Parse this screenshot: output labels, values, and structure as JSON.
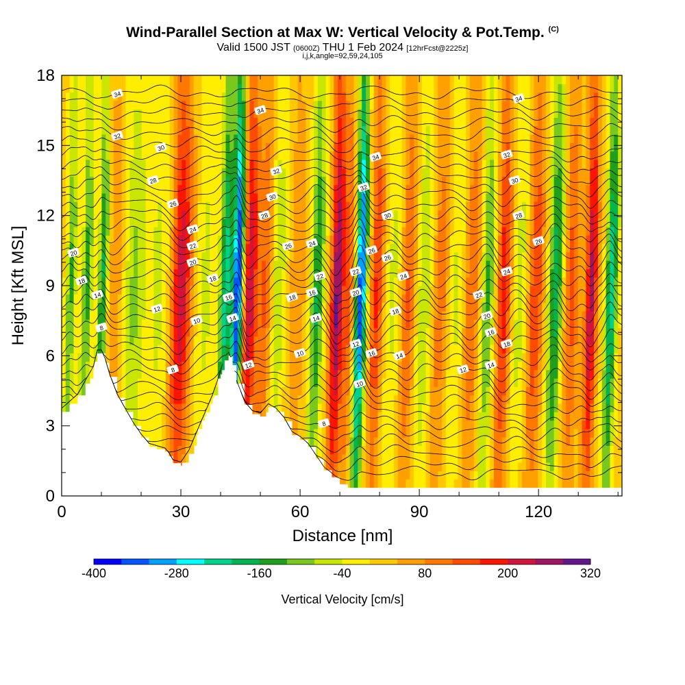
{
  "title": {
    "main": "Wind-Parallel Section at Max W: Vertical Velocity & Pot.Temp.",
    "copyright": "(C)",
    "valid_prefix": "Valid 1500 JST",
    "valid_utc": "(0600Z)",
    "valid_date": "THU 1 Feb 2024",
    "forecast": "[12hrFcst@2225z]",
    "ijk": "i,j,k,angle=92,59,24,105"
  },
  "chart_data": {
    "type": "heatmap",
    "xlabel": "Distance [nm]",
    "ylabel": "Height [Kft MSL]",
    "xlim": [
      0,
      141
    ],
    "ylim": [
      0,
      18
    ],
    "x_ticks": [
      "0",
      "30",
      "60",
      "90",
      "120"
    ],
    "y_ticks": [
      "0",
      "3",
      "6",
      "9",
      "12",
      "15",
      "18"
    ],
    "x_tick_values": [
      0,
      30,
      60,
      90,
      120
    ],
    "y_tick_values": [
      0,
      3,
      6,
      9,
      12,
      15,
      18
    ],
    "colorbar": {
      "label": "Vertical Velocity [cm/s]",
      "min": -400,
      "max": 320,
      "step": 40,
      "tick_labels": [
        "-400",
        "-280",
        "-160",
        "-40",
        "80",
        "200",
        "320"
      ],
      "colors": [
        "#0000ff",
        "#0055ff",
        "#00a0ff",
        "#00ffff",
        "#00d28c",
        "#00b450",
        "#1ea01e",
        "#78c81e",
        "#c8e600",
        "#ffee00",
        "#ffc800",
        "#ffa000",
        "#ff7800",
        "#ff4b00",
        "#ff1400",
        "#d2143c",
        "#a01464",
        "#64148c"
      ]
    },
    "terrain_kft": [
      [
        0,
        3.6
      ],
      [
        2,
        3.9
      ],
      [
        4,
        4.2
      ],
      [
        6,
        4.8
      ],
      [
        8,
        5.4
      ],
      [
        9,
        6.1
      ],
      [
        10,
        6.1
      ],
      [
        11,
        5.7
      ],
      [
        12,
        5.1
      ],
      [
        14,
        4.2
      ],
      [
        16,
        3.6
      ],
      [
        18,
        3.0
      ],
      [
        20,
        2.5
      ],
      [
        22,
        2.1
      ],
      [
        24,
        2.0
      ],
      [
        26,
        1.9
      ],
      [
        27,
        1.7
      ],
      [
        28,
        1.4
      ],
      [
        30,
        1.3
      ],
      [
        32,
        1.8
      ],
      [
        34,
        2.6
      ],
      [
        36,
        3.4
      ],
      [
        38,
        4.2
      ],
      [
        40,
        5.2
      ],
      [
        41,
        5.8
      ],
      [
        42,
        6.0
      ],
      [
        43,
        5.6
      ],
      [
        44,
        4.8
      ],
      [
        46,
        3.9
      ],
      [
        48,
        3.5
      ],
      [
        50,
        3.4
      ],
      [
        52,
        3.8
      ],
      [
        54,
        3.6
      ],
      [
        56,
        3.2
      ],
      [
        58,
        2.6
      ],
      [
        60,
        2.4
      ],
      [
        62,
        2.1
      ],
      [
        64,
        1.6
      ],
      [
        66,
        1.1
      ],
      [
        68,
        0.8
      ],
      [
        70,
        0.5
      ],
      [
        72,
        0.35
      ],
      [
        141,
        0.35
      ]
    ],
    "w_bands": [
      {
        "x": 2,
        "w": -140,
        "s": 1.2
      },
      {
        "x": 6,
        "w": -150,
        "s": 1.3
      },
      {
        "x": 10,
        "w": -180,
        "s": 1.2
      },
      {
        "x": 13,
        "w": 70,
        "s": 1.8
      },
      {
        "x": 18,
        "w": -100,
        "s": 2.5
      },
      {
        "x": 24,
        "w": -60,
        "s": 3
      },
      {
        "x": 29,
        "w": 170,
        "s": 2
      },
      {
        "x": 31,
        "w": 110,
        "s": 2
      },
      {
        "x": 36,
        "w": -60,
        "s": 2.5
      },
      {
        "x": 41,
        "w": -230,
        "s": 1.5
      },
      {
        "x": 44,
        "w": -400,
        "s": 1.3
      },
      {
        "x": 47,
        "w": 230,
        "s": 1.8
      },
      {
        "x": 51,
        "w": 120,
        "s": 2
      },
      {
        "x": 54,
        "w": -90,
        "s": 2
      },
      {
        "x": 59,
        "w": 70,
        "s": 2
      },
      {
        "x": 64,
        "w": -180,
        "s": 1.6
      },
      {
        "x": 69,
        "w": 280,
        "s": 1.6
      },
      {
        "x": 72,
        "w": 120,
        "s": 1.5
      },
      {
        "x": 75,
        "w": -370,
        "s": 1.4
      },
      {
        "x": 79,
        "w": 160,
        "s": 1.7
      },
      {
        "x": 83,
        "w": -60,
        "s": 2
      },
      {
        "x": 87,
        "w": 120,
        "s": 1.8
      },
      {
        "x": 91,
        "w": -90,
        "s": 2
      },
      {
        "x": 95,
        "w": 100,
        "s": 2
      },
      {
        "x": 99,
        "w": -60,
        "s": 2
      },
      {
        "x": 103,
        "w": 110,
        "s": 2
      },
      {
        "x": 107,
        "w": -140,
        "s": 1.7
      },
      {
        "x": 111,
        "w": 180,
        "s": 1.8
      },
      {
        "x": 115,
        "w": -70,
        "s": 2
      },
      {
        "x": 119,
        "w": 150,
        "s": 2
      },
      {
        "x": 124,
        "w": -200,
        "s": 1.8
      },
      {
        "x": 128,
        "w": 130,
        "s": 2
      },
      {
        "x": 133,
        "w": 240,
        "s": 1.5
      },
      {
        "x": 138,
        "w": -240,
        "s": 1.4
      }
    ],
    "theta_isentropes": {
      "levels_c": [
        8,
        10,
        12,
        14,
        16,
        18,
        20,
        22,
        24,
        26,
        28,
        30,
        32,
        34
      ],
      "labels": [
        {
          "text": "34",
          "x": 14,
          "y": 17.2
        },
        {
          "text": "34",
          "x": 50,
          "y": 16.5
        },
        {
          "text": "34",
          "x": 79,
          "y": 14.5
        },
        {
          "text": "34",
          "x": 115,
          "y": 17.0
        },
        {
          "text": "32",
          "x": 14,
          "y": 15.4
        },
        {
          "text": "32",
          "x": 54,
          "y": 13.9
        },
        {
          "text": "32",
          "x": 76,
          "y": 13.2
        },
        {
          "text": "32",
          "x": 112,
          "y": 14.6
        },
        {
          "text": "30",
          "x": 25,
          "y": 14.9
        },
        {
          "text": "30",
          "x": 53,
          "y": 12.8
        },
        {
          "text": "30",
          "x": 82,
          "y": 12.0
        },
        {
          "text": "30",
          "x": 114,
          "y": 13.5
        },
        {
          "text": "28",
          "x": 23,
          "y": 13.5
        },
        {
          "text": "28",
          "x": 51,
          "y": 12.0
        },
        {
          "text": "28",
          "x": 115,
          "y": 12.0
        },
        {
          "text": "26",
          "x": 28,
          "y": 12.5
        },
        {
          "text": "26",
          "x": 57,
          "y": 10.7
        },
        {
          "text": "26",
          "x": 78,
          "y": 10.5
        },
        {
          "text": "26",
          "x": 82,
          "y": 10.2
        },
        {
          "text": "26",
          "x": 120,
          "y": 10.9
        },
        {
          "text": "24",
          "x": 33,
          "y": 11.4
        },
        {
          "text": "24",
          "x": 63,
          "y": 10.8
        },
        {
          "text": "24",
          "x": 86,
          "y": 9.4
        },
        {
          "text": "24",
          "x": 112,
          "y": 9.6
        },
        {
          "text": "22",
          "x": 33,
          "y": 10.7
        },
        {
          "text": "22",
          "x": 65,
          "y": 9.4
        },
        {
          "text": "22",
          "x": 74,
          "y": 9.6
        },
        {
          "text": "22",
          "x": 105,
          "y": 8.6
        },
        {
          "text": "20",
          "x": 3,
          "y": 10.4
        },
        {
          "text": "20",
          "x": 33,
          "y": 10.0
        },
        {
          "text": "20",
          "x": 74,
          "y": 8.7
        },
        {
          "text": "20",
          "x": 107,
          "y": 7.7
        },
        {
          "text": "18",
          "x": 5,
          "y": 9.2
        },
        {
          "text": "18",
          "x": 38,
          "y": 9.3
        },
        {
          "text": "18",
          "x": 58,
          "y": 8.5
        },
        {
          "text": "18",
          "x": 84,
          "y": 7.9
        },
        {
          "text": "18",
          "x": 112,
          "y": 6.5
        },
        {
          "text": "16",
          "x": 42,
          "y": 8.5
        },
        {
          "text": "16",
          "x": 63,
          "y": 8.7
        },
        {
          "text": "16",
          "x": 78,
          "y": 6.1
        },
        {
          "text": "16",
          "x": 108,
          "y": 7.0
        },
        {
          "text": "14",
          "x": 9,
          "y": 8.6
        },
        {
          "text": "14",
          "x": 43,
          "y": 7.6
        },
        {
          "text": "14",
          "x": 64,
          "y": 7.6
        },
        {
          "text": "14",
          "x": 85,
          "y": 6.0
        },
        {
          "text": "14",
          "x": 108,
          "y": 5.6
        },
        {
          "text": "12",
          "x": 24,
          "y": 8.0
        },
        {
          "text": "12",
          "x": 47,
          "y": 5.6
        },
        {
          "text": "12",
          "x": 74,
          "y": 6.5
        },
        {
          "text": "12",
          "x": 101,
          "y": 5.4
        },
        {
          "text": "10",
          "x": 34,
          "y": 7.5
        },
        {
          "text": "10",
          "x": 60,
          "y": 6.1
        },
        {
          "text": "10",
          "x": 75,
          "y": 4.8
        },
        {
          "text": "8",
          "x": 10,
          "y": 7.2
        },
        {
          "text": "8",
          "x": 28,
          "y": 5.4
        },
        {
          "text": "8",
          "x": 66,
          "y": 3.1
        }
      ]
    }
  }
}
